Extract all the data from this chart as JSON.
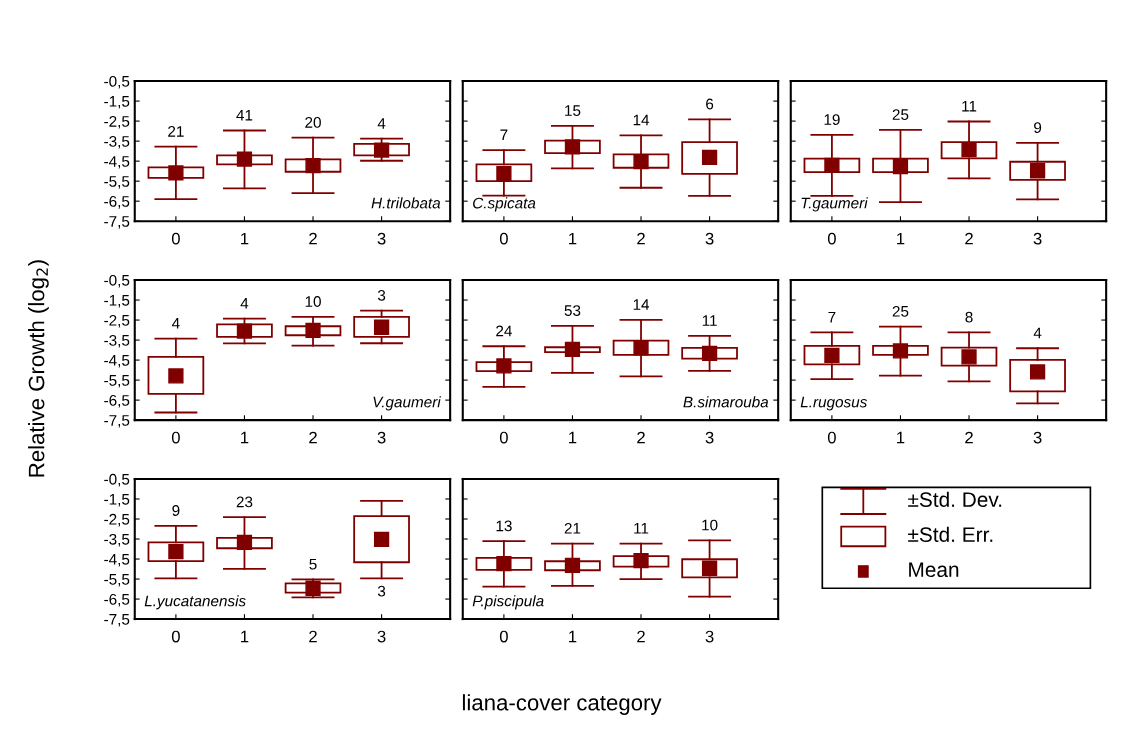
{
  "chart_data": [
    {
      "type": "box",
      "title": "H.trilobata",
      "ylabel": "Relative Growth (log$_{2}$)",
      "xlabel": "liana-cover category",
      "categories": [
        "0",
        "1",
        "2",
        "3"
      ],
      "color": "#800000",
      "marker": "square",
      "ylim": [
        -7.5,
        -0.5
      ],
      "yticks": [
        {
          "value": -0.5,
          "label": "-0,5"
        },
        {
          "value": -1.5,
          "label": "-1,5"
        },
        {
          "value": -2.5,
          "label": "-2,5"
        },
        {
          "value": -3.5,
          "label": "-3,5"
        },
        {
          "value": -4.5,
          "label": "-4,5"
        },
        {
          "value": -5.5,
          "label": "-5,5"
        },
        {
          "value": -6.5,
          "label": "-6,5"
        },
        {
          "value": -7.5,
          "label": "-7,5"
        }
      ],
      "boxes": [
        {
          "low": -6.4,
          "q1": -5.34,
          "mean": -5.09,
          "q3": -4.81,
          "high": -3.78
        },
        {
          "low": -5.86,
          "q1": -4.66,
          "mean": -4.4,
          "q3": -4.21,
          "high": -2.97
        },
        {
          "low": -6.1,
          "q1": -5.03,
          "mean": -4.72,
          "q3": -4.41,
          "high": -3.33
        },
        {
          "low": -4.48,
          "q1": -4.21,
          "mean": -3.95,
          "q3": -3.64,
          "high": -3.38
        }
      ],
      "annotations": [
        "21",
        "41",
        "20",
        "4"
      ]
    },
    {
      "type": "box",
      "title": "C.spicata",
      "categories": [
        "0",
        "1",
        "2",
        "3"
      ],
      "color": "#800000",
      "marker": "square",
      "tick_labels": "x",
      "ylim": [
        -7.5,
        -0.5
      ],
      "yticks": [
        -0.5,
        -1.5,
        -2.5,
        -3.5,
        -4.5,
        -5.5,
        -6.5,
        -7.5
      ],
      "boxes": [
        {
          "low": -6.22,
          "q1": -5.5,
          "mean": -5.12,
          "q3": -4.66,
          "high": -3.95
        },
        {
          "low": -4.86,
          "q1": -4.1,
          "mean": -3.79,
          "q3": -3.48,
          "high": -2.74
        },
        {
          "low": -5.83,
          "q1": -4.83,
          "mean": -4.52,
          "q3": -4.16,
          "high": -3.21
        },
        {
          "low": -6.24,
          "q1": -5.14,
          "mean": -4.31,
          "q3": -3.55,
          "high": -2.41
        }
      ],
      "annotations": [
        "7",
        "15",
        "14",
        "6"
      ]
    },
    {
      "type": "box",
      "title": "T.gaumeri",
      "categories": [
        "0",
        "1",
        "2",
        "3"
      ],
      "color": "#800000",
      "marker": "square",
      "tick_labels": "x",
      "ylim": [
        -7.5,
        -0.5
      ],
      "yticks": [
        -0.5,
        -1.5,
        -2.5,
        -3.5,
        -4.5,
        -5.5,
        -6.5,
        -7.5
      ],
      "boxes": [
        {
          "low": -6.24,
          "q1": -5.05,
          "mean": -4.71,
          "q3": -4.37,
          "high": -3.19
        },
        {
          "low": -6.55,
          "q1": -5.05,
          "mean": -4.78,
          "q3": -4.37,
          "high": -2.94
        },
        {
          "low": -5.36,
          "q1": -4.36,
          "mean": -3.92,
          "q3": -3.55,
          "high": -2.52
        },
        {
          "low": -6.41,
          "q1": -5.44,
          "mean": -4.98,
          "q3": -4.53,
          "high": -3.59
        }
      ],
      "annotations": [
        "19",
        "25",
        "11",
        "9"
      ]
    },
    {
      "type": "box",
      "title": "V.gaumeri",
      "categories": [
        "0",
        "1",
        "2",
        "3"
      ],
      "color": "#800000",
      "marker": "square",
      "ylim": [
        -7.5,
        -0.5
      ],
      "yticks": [
        {
          "value": -0.5,
          "label": "-0,5"
        },
        {
          "value": -1.5,
          "label": "-1,5"
        },
        {
          "value": -2.5,
          "label": "-2,5"
        },
        {
          "value": -3.5,
          "label": "-3,5"
        },
        {
          "value": -4.5,
          "label": "-4,5"
        },
        {
          "value": -5.5,
          "label": "-5,5"
        },
        {
          "value": -6.5,
          "label": "-6,5"
        },
        {
          "value": -7.5,
          "label": "-7,5"
        }
      ],
      "boxes": [
        {
          "low": -7.12,
          "q1": -6.19,
          "mean": -5.29,
          "q3": -4.34,
          "high": -3.43
        },
        {
          "low": -3.67,
          "q1": -3.34,
          "mean": -3.05,
          "q3": -2.72,
          "high": -2.43
        },
        {
          "low": -3.78,
          "q1": -3.26,
          "mean": -3.02,
          "q3": -2.81,
          "high": -2.34
        },
        {
          "low": -3.66,
          "q1": -3.34,
          "mean": -2.86,
          "q3": -2.34,
          "high": -2.03
        }
      ],
      "annotations": [
        "4",
        "4",
        "10",
        "3"
      ]
    },
    {
      "type": "box",
      "title": "B.simarouba",
      "categories": [
        "0",
        "1",
        "2",
        "3"
      ],
      "color": "#800000",
      "marker": "square",
      "tick_labels": "x",
      "ylim": [
        -7.5,
        -0.5
      ],
      "yticks": [
        -0.5,
        -1.5,
        -2.5,
        -3.5,
        -4.5,
        -5.5,
        -6.5,
        -7.5
      ],
      "boxes": [
        {
          "low": -5.84,
          "q1": -5.05,
          "mean": -4.79,
          "q3": -4.6,
          "high": -3.81
        },
        {
          "low": -5.14,
          "q1": -4.1,
          "mean": -3.97,
          "q3": -3.86,
          "high": -2.79
        },
        {
          "low": -5.31,
          "q1": -4.24,
          "mean": -3.89,
          "q3": -3.53,
          "high": -2.49
        },
        {
          "low": -5.04,
          "q1": -4.43,
          "mean": -4.17,
          "q3": -3.89,
          "high": -3.29
        }
      ],
      "annotations": [
        "24",
        "53",
        "14",
        "11"
      ]
    },
    {
      "type": "box",
      "title": "L.rugosus",
      "categories": [
        "0",
        "1",
        "2",
        "3"
      ],
      "color": "#800000",
      "marker": "square",
      "tick_labels": "x",
      "ylim": [
        -7.5,
        -0.5
      ],
      "yticks": [
        -0.5,
        -1.5,
        -2.5,
        -3.5,
        -4.5,
        -5.5,
        -6.5,
        -7.5
      ],
      "boxes": [
        {
          "low": -5.45,
          "q1": -4.71,
          "mean": -4.27,
          "q3": -3.79,
          "high": -3.12
        },
        {
          "low": -5.28,
          "q1": -4.24,
          "mean": -4.04,
          "q3": -3.79,
          "high": -2.83
        },
        {
          "low": -5.56,
          "q1": -4.78,
          "mean": -4.34,
          "q3": -3.88,
          "high": -3.12
        },
        {
          "low": -6.66,
          "q1": -6.06,
          "mean": -5.09,
          "q3": -4.49,
          "high": -3.91
        }
      ],
      "annotations": [
        "7",
        "25",
        "8",
        "4"
      ]
    },
    {
      "type": "box",
      "title": "L.yucatanensis",
      "categories": [
        "0",
        "1",
        "2",
        "3"
      ],
      "color": "#800000",
      "marker": "square",
      "ylim": [
        -7.5,
        -0.5
      ],
      "yticks": [
        {
          "value": -0.5,
          "label": "-0,5"
        },
        {
          "value": -1.5,
          "label": "-1,5"
        },
        {
          "value": -2.5,
          "label": "-2,5"
        },
        {
          "value": -3.5,
          "label": "-3,5"
        },
        {
          "value": -4.5,
          "label": "-4,5"
        },
        {
          "value": -5.5,
          "label": "-5,5"
        },
        {
          "value": -6.5,
          "label": "-6,5"
        },
        {
          "value": -7.5,
          "label": "-7,5"
        }
      ],
      "boxes": [
        {
          "low": -5.47,
          "q1": -4.6,
          "mean": -4.13,
          "q3": -3.67,
          "high": -2.84
        },
        {
          "low": -4.99,
          "q1": -3.96,
          "mean": -3.67,
          "q3": -3.44,
          "high": -2.41
        },
        {
          "low": -6.42,
          "q1": -6.18,
          "mean": -5.96,
          "q3": -5.72,
          "high": -5.52
        },
        {
          "low": -5.47,
          "q1": -4.66,
          "mean": -3.52,
          "q3": -2.36,
          "high": -1.59
        }
      ],
      "annotations": [
        "9",
        "23",
        "5",
        "3"
      ]
    },
    {
      "type": "box",
      "title": "P.piscipula",
      "categories": [
        "0",
        "1",
        "2",
        "3"
      ],
      "color": "#800000",
      "marker": "square",
      "tick_labels": "x",
      "ylim": [
        -7.5,
        -0.5
      ],
      "yticks": [
        -0.5,
        -1.5,
        -2.5,
        -3.5,
        -4.5,
        -5.5,
        -6.5,
        -7.5
      ],
      "boxes": [
        {
          "low": -5.88,
          "q1": -5.04,
          "mean": -4.73,
          "q3": -4.44,
          "high": -3.61
        },
        {
          "low": -5.84,
          "q1": -5.06,
          "mean": -4.82,
          "q3": -4.61,
          "high": -3.73
        },
        {
          "low": -5.5,
          "q1": -4.88,
          "mean": -4.58,
          "q3": -4.35,
          "high": -3.73
        },
        {
          "low": -6.38,
          "q1": -5.42,
          "mean": -4.96,
          "q3": -4.51,
          "high": -3.57
        }
      ],
      "annotations": [
        "13",
        "21",
        "11",
        "10"
      ]
    },
    {
      "type": "other",
      "color": "#800000",
      "annotations": [
        "±Std. Dev.",
        "±Std. Err.",
        "Mean"
      ]
    }
  ]
}
